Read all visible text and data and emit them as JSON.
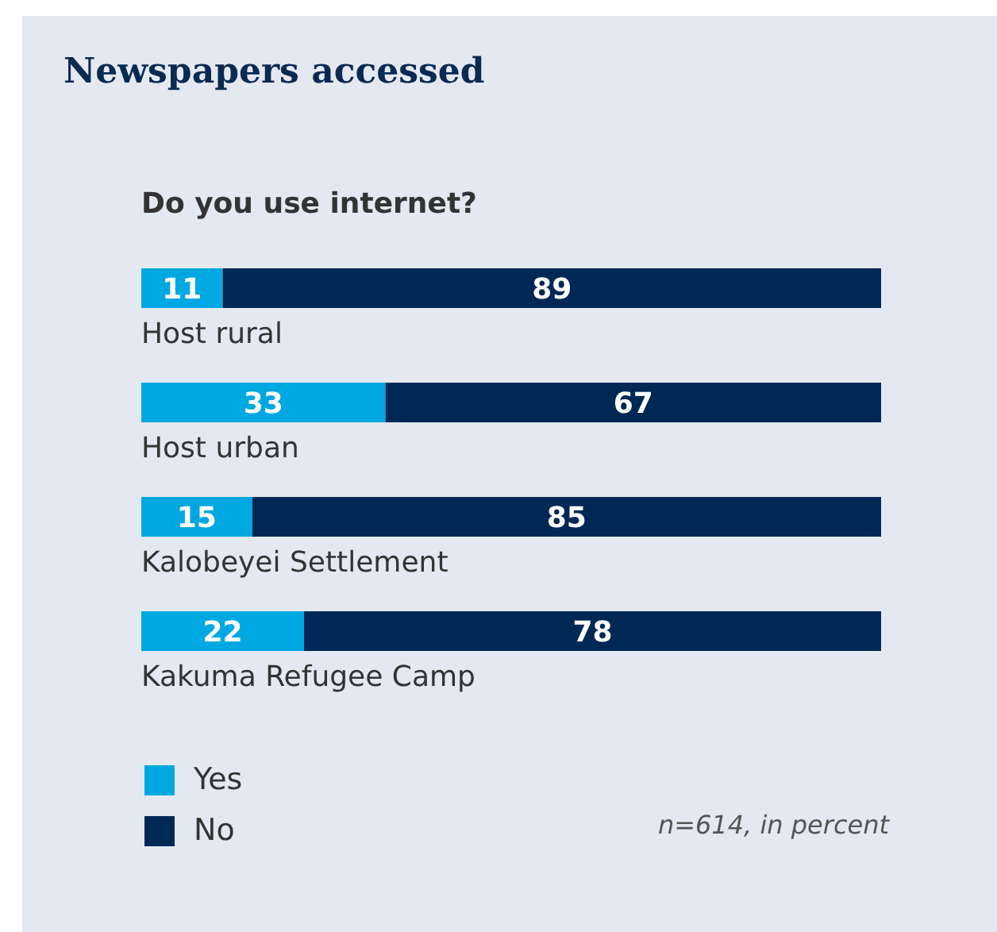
{
  "chart_data": {
    "type": "bar",
    "title": "Newspapers accessed",
    "subtitle": "Do you use internet?",
    "orientation": "horizontal",
    "stacked": true,
    "data_labels": true,
    "legend": "bottom left",
    "categories": [
      "Host rural",
      "Host urban",
      "Kalobeyei Settlement",
      "Kakuma Refugee Camp"
    ],
    "series": [
      {
        "name": "Yes",
        "color": "#00a8e1",
        "values": [
          11,
          33,
          15,
          22
        ]
      },
      {
        "name": "No",
        "color": "#002855",
        "values": [
          89,
          67,
          85,
          78
        ]
      }
    ],
    "annotations": [
      "n=614, in percent"
    ]
  }
}
